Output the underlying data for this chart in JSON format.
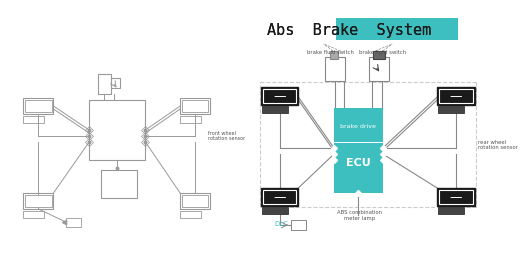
{
  "title": "Abs Brake System",
  "background": "#ffffff",
  "teal": "#3DBFBF",
  "dark": "#1a1a1a",
  "gray": "#888888",
  "light_gray": "#cccccc",
  "sketch_color": "#999999",
  "label_color": "#555555",
  "labels": {
    "brake_fluid": "brake fluid switch",
    "brake_light": "brake light switch",
    "front_wheel": "front wheel\nrotation sensor",
    "rear_wheel": "rear wheel\nrotation sensor",
    "abs_comb": "ABS combination\nmeter lamp",
    "brake_drive": "brake drive",
    "ecu": "ECU",
    "dlc": "DLC"
  }
}
